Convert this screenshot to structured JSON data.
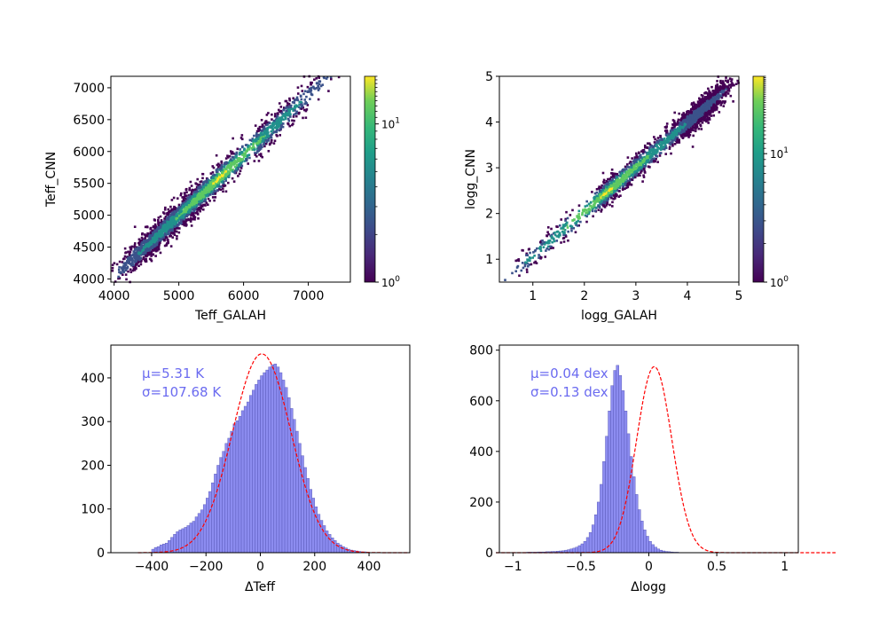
{
  "colors": {
    "hist_fill": "#8c8cf0",
    "hist_edge": "#5050b0",
    "fit_line": "#ff0000",
    "stat_text": "#6b6bf0"
  },
  "chart_data": [
    {
      "type": "heatmap",
      "xlabel": "Teff_GALAH",
      "ylabel": "Teff_CNN",
      "xlim": [
        3950,
        7650
      ],
      "ylim": [
        3950,
        7180
      ],
      "xticks": [
        4000,
        5000,
        6000,
        7000
      ],
      "yticks": [
        4000,
        4500,
        5000,
        5500,
        6000,
        6500,
        7000
      ],
      "colorscale": "viridis",
      "colorbar": {
        "scale": "log",
        "range": [
          1,
          20
        ],
        "tick_labels": [
          {
            "base": "10",
            "exp": "0"
          },
          {
            "base": "10",
            "exp": "1"
          }
        ]
      },
      "relation": {
        "x_range": [
          4100,
          7500
        ],
        "slope": 0.95,
        "intercept": 240,
        "scatter": 110
      }
    },
    {
      "type": "heatmap",
      "xlabel": "logg_GALAH",
      "ylabel": "logg_CNN",
      "xlim": [
        0.35,
        5.0
      ],
      "ylim": [
        0.5,
        5.0
      ],
      "xticks": [
        1,
        2,
        3,
        4,
        5
      ],
      "yticks": [
        1,
        2,
        3,
        4,
        5
      ],
      "colorscale": "viridis",
      "colorbar": {
        "scale": "log",
        "range": [
          1,
          40
        ],
        "tick_labels": [
          {
            "base": "10",
            "exp": "0"
          },
          {
            "base": "10",
            "exp": "1"
          }
        ]
      },
      "relation": {
        "x_range": [
          0.5,
          4.8
        ],
        "slope": 0.97,
        "intercept": 0.1,
        "scatter": 0.13
      }
    },
    {
      "type": "bar",
      "xlabel": "ΔTeff",
      "ylabel": "",
      "xlim": [
        -550,
        550
      ],
      "ylim": [
        0,
        475
      ],
      "xticks": [
        -400,
        -200,
        0,
        200,
        400
      ],
      "yticks": [
        0,
        100,
        200,
        300,
        400
      ],
      "stats": {
        "mu": "μ=5.31 K",
        "sigma": "σ=107.68 K"
      },
      "fit": {
        "mean": 5.31,
        "sigma": 107.68,
        "peak": 455
      },
      "bin_start": -400,
      "bin_width": 10,
      "values": [
        8,
        12,
        14,
        18,
        20,
        22,
        28,
        35,
        42,
        48,
        52,
        55,
        58,
        62,
        68,
        72,
        82,
        90,
        98,
        110,
        125,
        140,
        160,
        180,
        200,
        218,
        232,
        250,
        262,
        278,
        295,
        302,
        312,
        325,
        335,
        345,
        360,
        372,
        385,
        395,
        405,
        412,
        418,
        425,
        430,
        432,
        425,
        412,
        395,
        378,
        355,
        330,
        305,
        278,
        250,
        222,
        195,
        170,
        145,
        125,
        105,
        88,
        74,
        62,
        50,
        42,
        34,
        28,
        22,
        18,
        14,
        11,
        8,
        6,
        5,
        4,
        3,
        2,
        2,
        1
      ]
    },
    {
      "type": "bar",
      "xlabel": "Δlogg",
      "ylabel": "",
      "xlim": [
        -1.1,
        1.1
      ],
      "ylim": [
        0,
        820
      ],
      "xticks": [
        -1.0,
        -0.5,
        0.0,
        0.5,
        1.0
      ],
      "yticks": [
        0,
        200,
        400,
        600,
        800
      ],
      "stats": {
        "mu": "μ=0.04 dex",
        "sigma": "σ=0.13 dex"
      },
      "fit": {
        "mean": 0.04,
        "sigma": 0.13,
        "peak": 735
      },
      "bin_start": -1.0,
      "bin_width": 0.02,
      "values": [
        1,
        1,
        1,
        1,
        1,
        2,
        2,
        2,
        2,
        3,
        3,
        3,
        4,
        4,
        5,
        5,
        6,
        7,
        8,
        10,
        12,
        15,
        18,
        22,
        28,
        35,
        45,
        60,
        80,
        110,
        150,
        200,
        270,
        360,
        460,
        560,
        660,
        720,
        740,
        700,
        640,
        560,
        470,
        380,
        300,
        230,
        170,
        125,
        90,
        65,
        45,
        32,
        22,
        15,
        10,
        7,
        5,
        4,
        3,
        2,
        2,
        1,
        1,
        1,
        1,
        1,
        1,
        1,
        1,
        1
      ]
    }
  ]
}
